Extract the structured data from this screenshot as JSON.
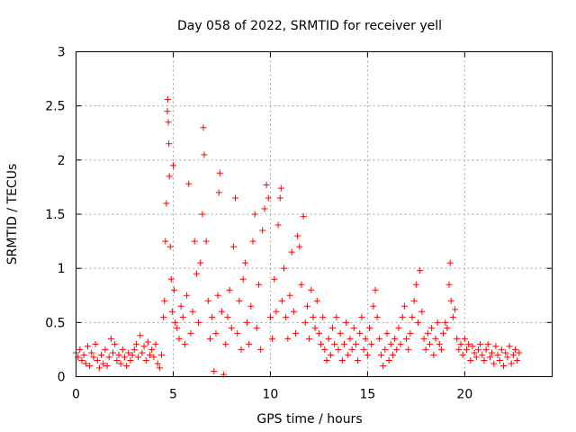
{
  "chart_data": {
    "type": "scatter",
    "title": "Day 058 of 2022, SRMTID for receiver yell",
    "xlabel": "GPS time / hours",
    "ylabel": "SRMTID / TECUs",
    "xlim": [
      0,
      24.5
    ],
    "ylim": [
      0,
      3
    ],
    "xticks": [
      0,
      5,
      10,
      15,
      20
    ],
    "xtick_labels": [
      "0",
      "5",
      "10",
      "15",
      "20"
    ],
    "yticks": [
      0,
      0.5,
      1,
      1.5,
      2,
      2.5,
      3
    ],
    "ytick_labels": [
      "0",
      "0.5",
      "1",
      "1.5",
      "2",
      "2.5",
      "3"
    ],
    "grid": true,
    "marker": "+",
    "marker_color": "#ff0000",
    "series": [
      {
        "name": "SRMTID",
        "points": [
          [
            0.0,
            0.22
          ],
          [
            0.1,
            0.18
          ],
          [
            0.2,
            0.25
          ],
          [
            0.3,
            0.15
          ],
          [
            0.4,
            0.2
          ],
          [
            0.5,
            0.12
          ],
          [
            0.6,
            0.28
          ],
          [
            0.7,
            0.1
          ],
          [
            0.8,
            0.22
          ],
          [
            0.9,
            0.18
          ],
          [
            1.0,
            0.3
          ],
          [
            1.1,
            0.15
          ],
          [
            1.2,
            0.08
          ],
          [
            1.3,
            0.2
          ],
          [
            1.4,
            0.12
          ],
          [
            1.5,
            0.25
          ],
          [
            1.6,
            0.1
          ],
          [
            1.7,
            0.18
          ],
          [
            1.8,
            0.35
          ],
          [
            1.9,
            0.22
          ],
          [
            2.0,
            0.3
          ],
          [
            2.1,
            0.15
          ],
          [
            2.2,
            0.2
          ],
          [
            2.3,
            0.12
          ],
          [
            2.4,
            0.25
          ],
          [
            2.5,
            0.18
          ],
          [
            2.6,
            0.1
          ],
          [
            2.7,
            0.22
          ],
          [
            2.8,
            0.15
          ],
          [
            2.9,
            0.2
          ],
          [
            3.0,
            0.25
          ],
          [
            3.1,
            0.3
          ],
          [
            3.2,
            0.18
          ],
          [
            3.3,
            0.38
          ],
          [
            3.4,
            0.22
          ],
          [
            3.5,
            0.28
          ],
          [
            3.6,
            0.15
          ],
          [
            3.7,
            0.32
          ],
          [
            3.8,
            0.2
          ],
          [
            3.9,
            0.25
          ],
          [
            4.0,
            0.18
          ],
          [
            4.1,
            0.3
          ],
          [
            4.2,
            0.12
          ],
          [
            4.3,
            0.08
          ],
          [
            4.4,
            0.2
          ],
          [
            4.5,
            0.55
          ],
          [
            4.55,
            0.7
          ],
          [
            4.6,
            1.25
          ],
          [
            4.65,
            1.6
          ],
          [
            4.7,
            2.45
          ],
          [
            4.72,
            2.56
          ],
          [
            4.75,
            2.35
          ],
          [
            4.78,
            2.15
          ],
          [
            4.8,
            1.85
          ],
          [
            4.85,
            1.2
          ],
          [
            4.9,
            0.9
          ],
          [
            4.95,
            0.6
          ],
          [
            5.0,
            1.95
          ],
          [
            5.05,
            0.8
          ],
          [
            5.1,
            0.5
          ],
          [
            5.2,
            0.45
          ],
          [
            5.3,
            0.35
          ],
          [
            5.4,
            0.65
          ],
          [
            5.5,
            0.55
          ],
          [
            5.6,
            0.3
          ],
          [
            5.7,
            0.75
          ],
          [
            5.8,
            1.78
          ],
          [
            5.9,
            0.4
          ],
          [
            6.0,
            0.6
          ],
          [
            6.1,
            1.25
          ],
          [
            6.2,
            0.95
          ],
          [
            6.3,
            0.5
          ],
          [
            6.4,
            1.05
          ],
          [
            6.5,
            1.5
          ],
          [
            6.55,
            2.3
          ],
          [
            6.6,
            2.05
          ],
          [
            6.7,
            1.25
          ],
          [
            6.8,
            0.7
          ],
          [
            6.9,
            0.35
          ],
          [
            7.0,
            0.55
          ],
          [
            7.1,
            0.05
          ],
          [
            7.2,
            0.4
          ],
          [
            7.3,
            0.75
          ],
          [
            7.35,
            1.7
          ],
          [
            7.4,
            1.88
          ],
          [
            7.5,
            0.6
          ],
          [
            7.6,
            0.02
          ],
          [
            7.7,
            0.3
          ],
          [
            7.8,
            0.55
          ],
          [
            7.9,
            0.8
          ],
          [
            8.0,
            0.45
          ],
          [
            8.1,
            1.2
          ],
          [
            8.2,
            1.65
          ],
          [
            8.3,
            0.4
          ],
          [
            8.4,
            0.7
          ],
          [
            8.5,
            0.25
          ],
          [
            8.6,
            0.9
          ],
          [
            8.7,
            1.05
          ],
          [
            8.8,
            0.5
          ],
          [
            8.9,
            0.3
          ],
          [
            9.0,
            0.65
          ],
          [
            9.1,
            1.25
          ],
          [
            9.2,
            1.5
          ],
          [
            9.3,
            0.45
          ],
          [
            9.4,
            0.85
          ],
          [
            9.5,
            0.25
          ],
          [
            9.6,
            1.35
          ],
          [
            9.7,
            1.55
          ],
          [
            9.8,
            1.77
          ],
          [
            9.9,
            1.65
          ],
          [
            10.0,
            0.55
          ],
          [
            10.1,
            0.35
          ],
          [
            10.2,
            0.9
          ],
          [
            10.3,
            0.6
          ],
          [
            10.4,
            1.4
          ],
          [
            10.5,
            1.65
          ],
          [
            10.55,
            1.74
          ],
          [
            10.6,
            0.7
          ],
          [
            10.7,
            1.0
          ],
          [
            10.8,
            0.55
          ],
          [
            10.9,
            0.35
          ],
          [
            11.0,
            0.75
          ],
          [
            11.1,
            1.15
          ],
          [
            11.2,
            0.6
          ],
          [
            11.3,
            0.4
          ],
          [
            11.4,
            1.3
          ],
          [
            11.5,
            1.2
          ],
          [
            11.6,
            0.85
          ],
          [
            11.7,
            1.48
          ],
          [
            11.8,
            0.5
          ],
          [
            11.9,
            0.65
          ],
          [
            12.0,
            0.35
          ],
          [
            12.1,
            0.8
          ],
          [
            12.2,
            0.55
          ],
          [
            12.3,
            0.45
          ],
          [
            12.4,
            0.7
          ],
          [
            12.5,
            0.4
          ],
          [
            12.6,
            0.3
          ],
          [
            12.7,
            0.55
          ],
          [
            12.8,
            0.25
          ],
          [
            12.9,
            0.15
          ],
          [
            13.0,
            0.35
          ],
          [
            13.1,
            0.2
          ],
          [
            13.2,
            0.45
          ],
          [
            13.3,
            0.3
          ],
          [
            13.4,
            0.55
          ],
          [
            13.5,
            0.25
          ],
          [
            13.6,
            0.4
          ],
          [
            13.7,
            0.15
          ],
          [
            13.8,
            0.3
          ],
          [
            13.9,
            0.5
          ],
          [
            14.0,
            0.2
          ],
          [
            14.1,
            0.35
          ],
          [
            14.2,
            0.25
          ],
          [
            14.3,
            0.45
          ],
          [
            14.4,
            0.3
          ],
          [
            14.5,
            0.15
          ],
          [
            14.6,
            0.4
          ],
          [
            14.7,
            0.55
          ],
          [
            14.8,
            0.25
          ],
          [
            14.9,
            0.35
          ],
          [
            15.0,
            0.2
          ],
          [
            15.1,
            0.45
          ],
          [
            15.2,
            0.3
          ],
          [
            15.3,
            0.65
          ],
          [
            15.4,
            0.8
          ],
          [
            15.5,
            0.55
          ],
          [
            15.6,
            0.35
          ],
          [
            15.7,
            0.2
          ],
          [
            15.8,
            0.1
          ],
          [
            15.9,
            0.25
          ],
          [
            16.0,
            0.4
          ],
          [
            16.1,
            0.15
          ],
          [
            16.2,
            0.3
          ],
          [
            16.3,
            0.2
          ],
          [
            16.4,
            0.35
          ],
          [
            16.5,
            0.25
          ],
          [
            16.6,
            0.45
          ],
          [
            16.7,
            0.3
          ],
          [
            16.8,
            0.55
          ],
          [
            16.9,
            0.65
          ],
          [
            17.0,
            0.35
          ],
          [
            17.1,
            0.25
          ],
          [
            17.2,
            0.4
          ],
          [
            17.3,
            0.55
          ],
          [
            17.4,
            0.7
          ],
          [
            17.5,
            0.85
          ],
          [
            17.6,
            0.5
          ],
          [
            17.7,
            0.98
          ],
          [
            17.8,
            0.6
          ],
          [
            17.9,
            0.35
          ],
          [
            18.0,
            0.25
          ],
          [
            18.1,
            0.4
          ],
          [
            18.2,
            0.3
          ],
          [
            18.3,
            0.45
          ],
          [
            18.4,
            0.2
          ],
          [
            18.5,
            0.35
          ],
          [
            18.6,
            0.5
          ],
          [
            18.7,
            0.3
          ],
          [
            18.8,
            0.25
          ],
          [
            18.9,
            0.4
          ],
          [
            19.0,
            0.5
          ],
          [
            19.1,
            0.45
          ],
          [
            19.2,
            0.85
          ],
          [
            19.25,
            1.05
          ],
          [
            19.3,
            0.7
          ],
          [
            19.4,
            0.55
          ],
          [
            19.5,
            0.62
          ],
          [
            19.6,
            0.35
          ],
          [
            19.7,
            0.25
          ],
          [
            19.8,
            0.3
          ],
          [
            19.9,
            0.2
          ],
          [
            20.0,
            0.35
          ],
          [
            20.1,
            0.25
          ],
          [
            20.2,
            0.3
          ],
          [
            20.3,
            0.15
          ],
          [
            20.4,
            0.28
          ],
          [
            20.5,
            0.22
          ],
          [
            20.6,
            0.18
          ],
          [
            20.7,
            0.25
          ],
          [
            20.8,
            0.3
          ],
          [
            20.9,
            0.2
          ],
          [
            21.0,
            0.15
          ],
          [
            21.1,
            0.25
          ],
          [
            21.2,
            0.3
          ],
          [
            21.3,
            0.18
          ],
          [
            21.4,
            0.22
          ],
          [
            21.5,
            0.12
          ],
          [
            21.6,
            0.28
          ],
          [
            21.7,
            0.2
          ],
          [
            21.8,
            0.15
          ],
          [
            21.9,
            0.25
          ],
          [
            22.0,
            0.1
          ],
          [
            22.1,
            0.22
          ],
          [
            22.2,
            0.18
          ],
          [
            22.3,
            0.28
          ],
          [
            22.4,
            0.12
          ],
          [
            22.5,
            0.2
          ],
          [
            22.6,
            0.25
          ],
          [
            22.7,
            0.15
          ],
          [
            22.8,
            0.22
          ]
        ]
      }
    ]
  }
}
